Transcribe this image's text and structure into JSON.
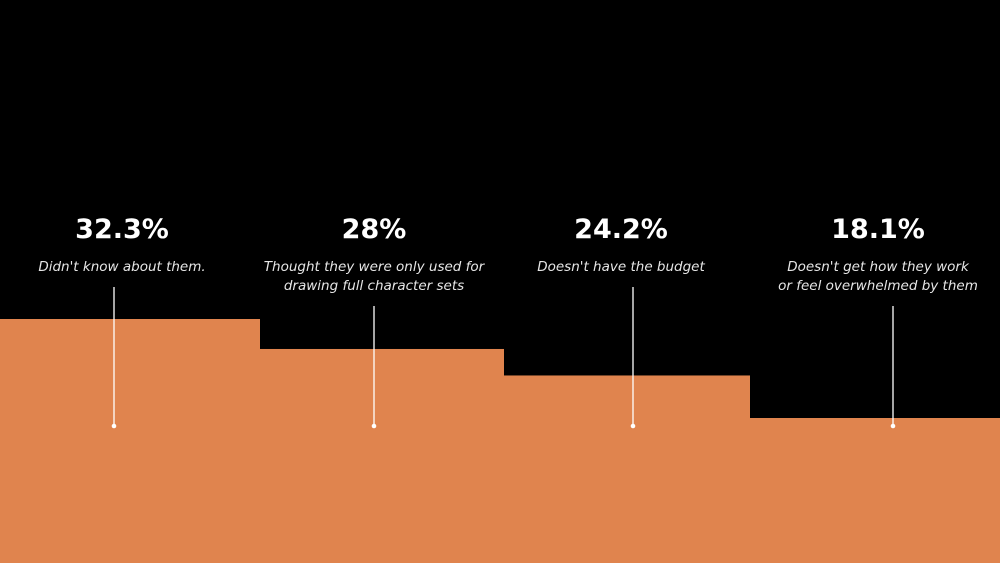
{
  "chart_data": {
    "type": "bar",
    "categories": [
      "Didn't know about them.",
      "Thought they were only used for drawing full character sets",
      "Doesn't have the budget",
      "Doesn't get how they work or feel overwhelmed by them"
    ],
    "value_labels": [
      "32.3%",
      "28%",
      "24.2%",
      "18.1%"
    ],
    "values": [
      32.3,
      28,
      24.2,
      18.1
    ],
    "description_lines": [
      [
        "Didn't know about them."
      ],
      [
        "Thought they were only used for",
        "drawing full character sets"
      ],
      [
        "Doesn't have the budget"
      ],
      [
        "Doesn't get how they work",
        "or feel overwhelmed by them"
      ]
    ],
    "title": "",
    "xlabel": "",
    "ylabel": "",
    "grid": false,
    "legend": "none"
  },
  "colors": {
    "background": "#000000",
    "bar": "#e0844e",
    "text": "#ffffff",
    "leader_line": "#ffffff"
  }
}
